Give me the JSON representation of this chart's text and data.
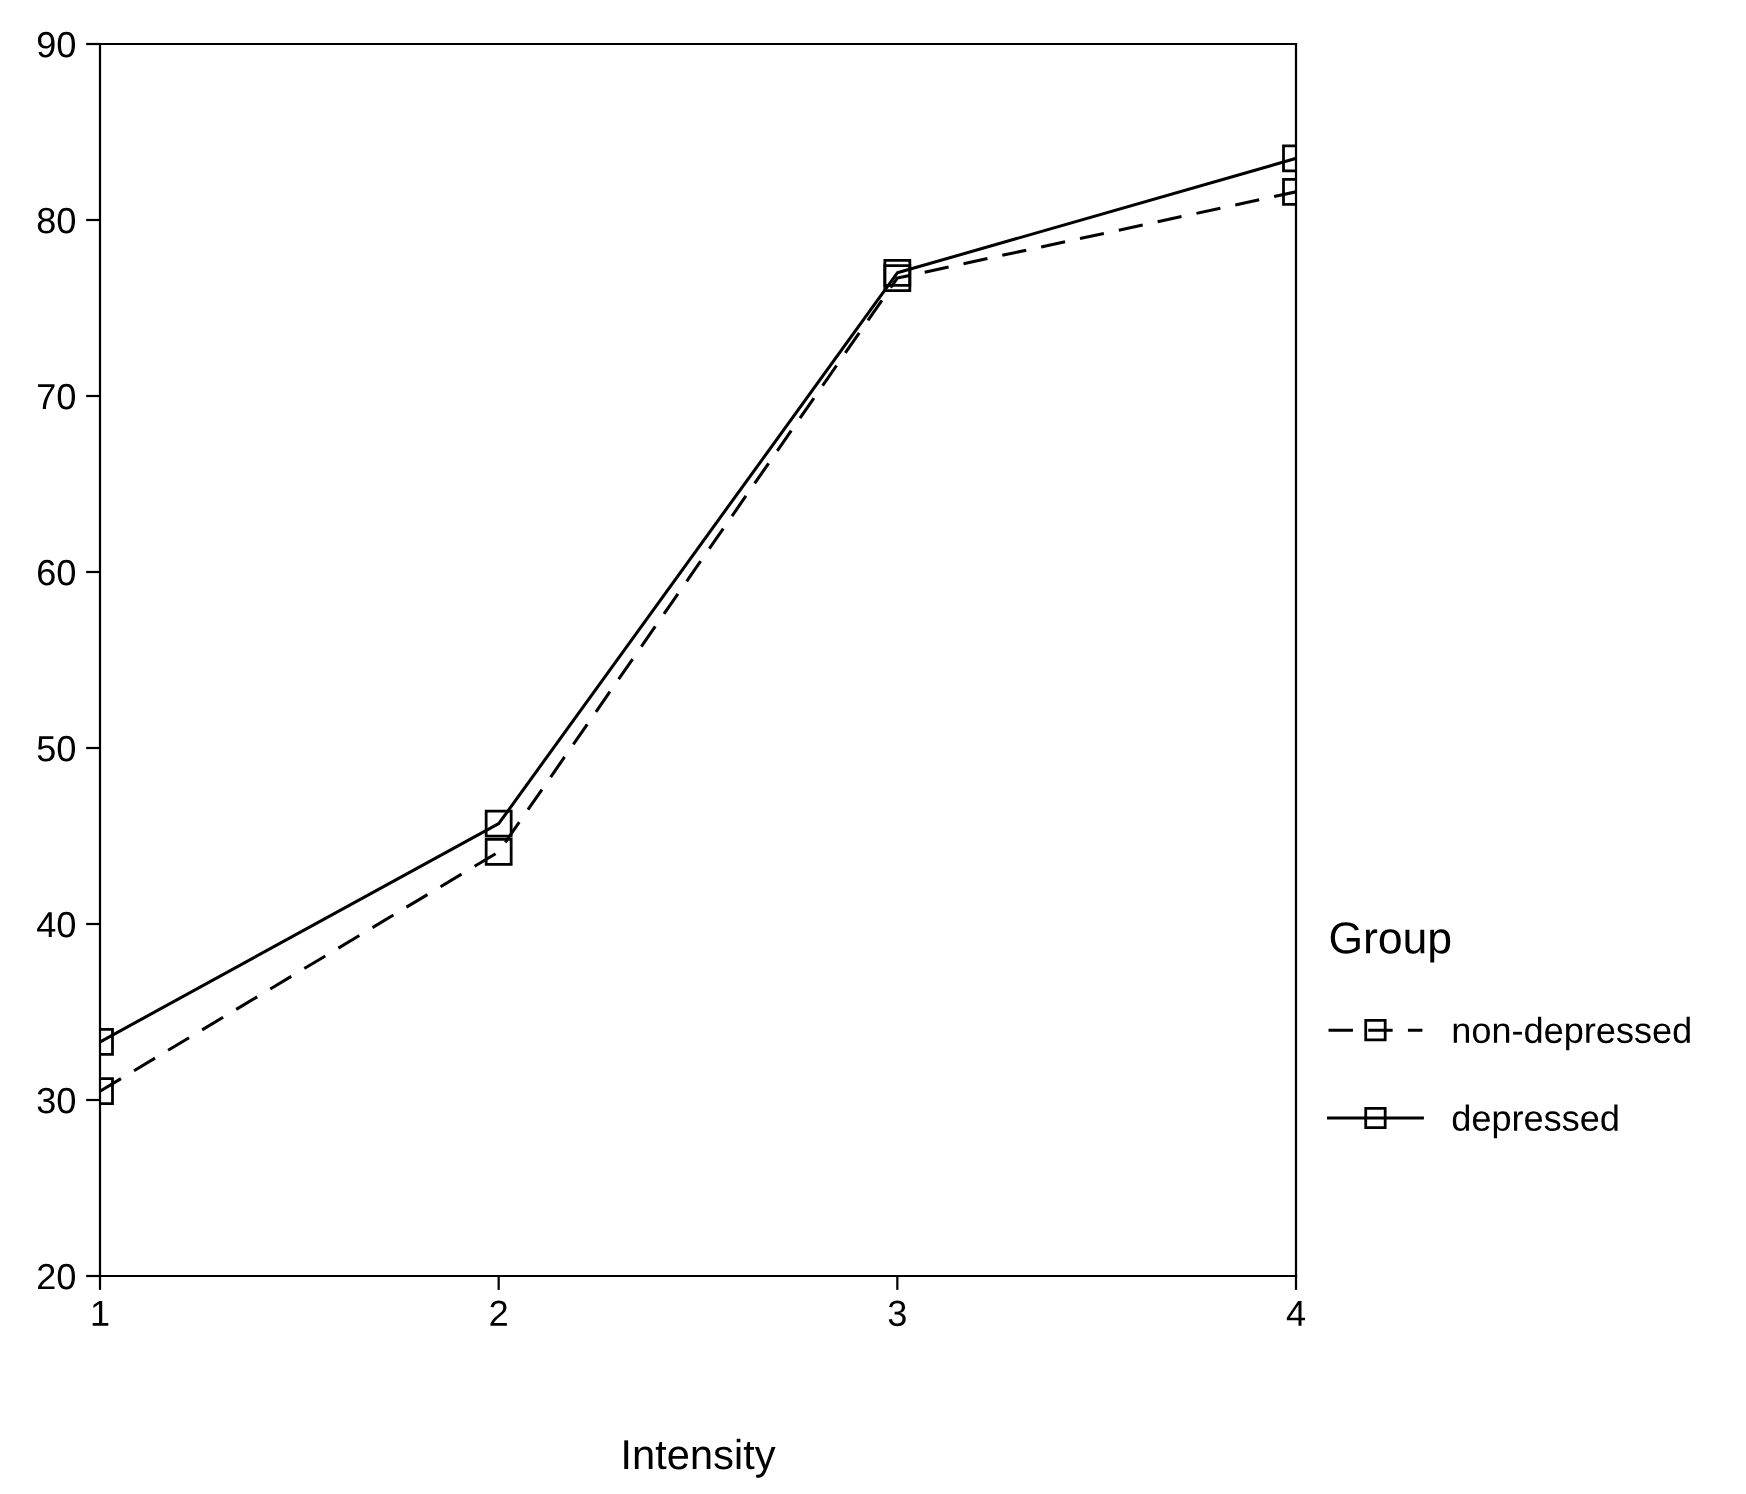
{
  "chart_data": {
    "type": "line",
    "xlabel": "Intensity",
    "legend_title": "Group",
    "x": [
      1,
      2,
      3,
      4
    ],
    "series": [
      {
        "name": "non-depressed",
        "color": "#000000",
        "line_style": "dashed",
        "values": [
          30.5,
          44.1,
          76.7,
          81.6
        ]
      },
      {
        "name": "depressed",
        "color": "#000000",
        "line_style": "solid",
        "values": [
          33.3,
          45.7,
          77.0,
          83.5
        ]
      }
    ],
    "marker": "square",
    "xlim": [
      1,
      4
    ],
    "xticks": [
      1,
      2,
      3,
      4
    ],
    "ylim": [
      20,
      90
    ],
    "yticks": [
      20,
      30,
      40,
      50,
      60,
      70,
      80,
      90
    ],
    "grid": false,
    "legend": "right"
  }
}
